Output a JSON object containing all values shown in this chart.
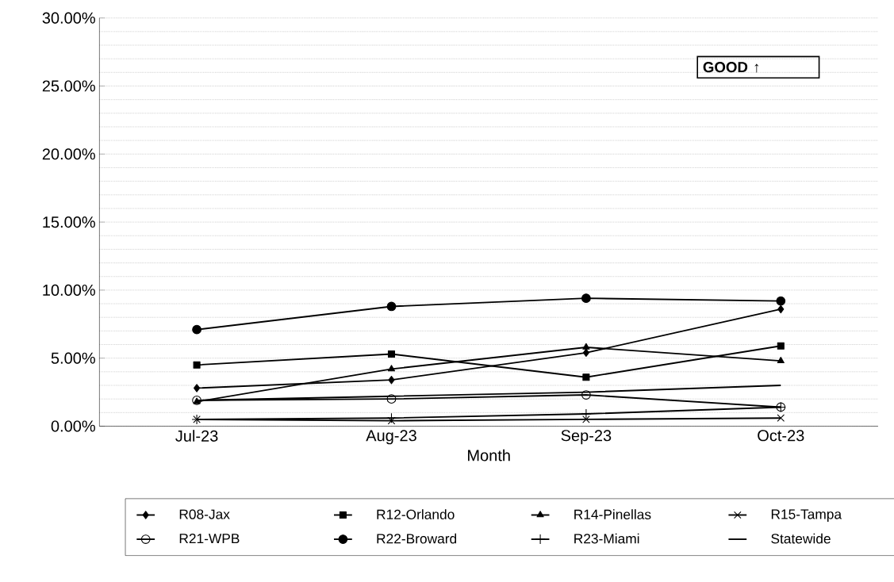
{
  "chart_data": {
    "type": "line",
    "xlabel": "Month",
    "categories": [
      "Jul-23",
      "Aug-23",
      "Sep-23",
      "Oct-23"
    ],
    "series": [
      {
        "name": "R08-Jax",
        "color": "#000000",
        "marker": "diamond",
        "values": [
          2.8,
          3.4,
          5.4,
          8.6
        ]
      },
      {
        "name": "R12-Orlando",
        "color": "#000000",
        "marker": "square",
        "values": [
          4.5,
          5.3,
          3.6,
          5.9
        ]
      },
      {
        "name": "R14-Pinellas",
        "color": "#000000",
        "marker": "triangle",
        "values": [
          1.8,
          4.2,
          5.8,
          4.8
        ]
      },
      {
        "name": "R15-Tampa",
        "color": "#000000",
        "marker": "cross",
        "values": [
          0.5,
          0.4,
          0.5,
          0.6
        ]
      },
      {
        "name": "R21-WPB",
        "color": "#000000",
        "marker": "open circle",
        "values": [
          1.9,
          2.0,
          2.3,
          1.4
        ]
      },
      {
        "name": "R22-Broward",
        "color": "#000000",
        "marker": "circle",
        "values": [
          7.1,
          8.8,
          9.4,
          9.2
        ]
      },
      {
        "name": "R23-Miami",
        "color": "#000000",
        "marker": "plus",
        "values": [
          0.5,
          0.6,
          0.9,
          1.4
        ]
      },
      {
        "name": "Statewide",
        "color": "#000000",
        "marker": "none",
        "values": [
          1.9,
          2.2,
          2.5,
          3.0
        ]
      }
    ],
    "ylim": [
      0,
      30
    ],
    "yticks": [
      {
        "value": 0,
        "label": "0.00%"
      },
      {
        "value": 5,
        "label": "5.00%"
      },
      {
        "value": 10,
        "label": "10.00%"
      },
      {
        "value": 15,
        "label": "15.00%"
      },
      {
        "value": 20,
        "label": "20.00%"
      },
      {
        "value": 25,
        "label": "25.00%"
      },
      {
        "value": 30,
        "label": "30.00%"
      }
    ],
    "grid": "y",
    "legend": "bottom",
    "line_style": "solid",
    "annotations": [
      "GOOD ↑"
    ]
  }
}
